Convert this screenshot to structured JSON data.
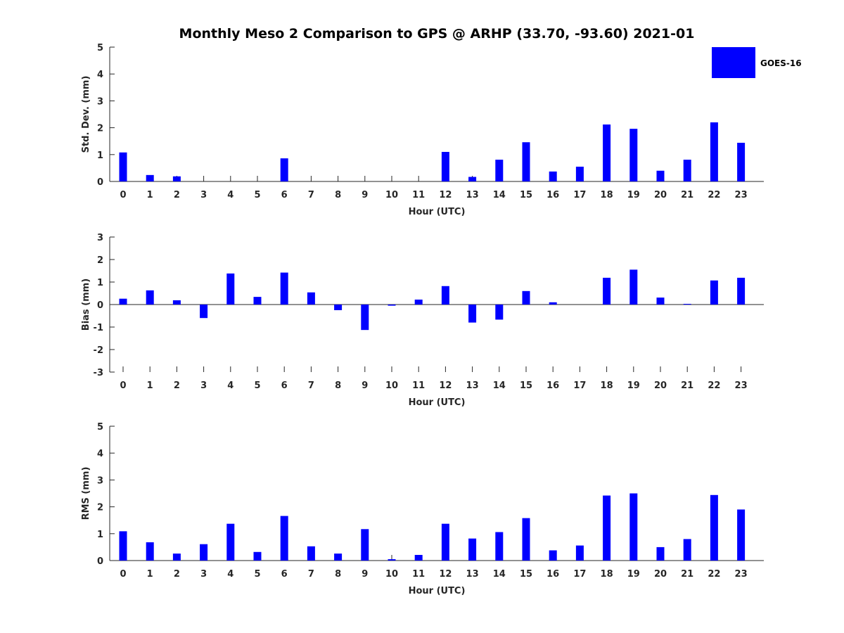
{
  "title": "Monthly Meso 2 Comparison to GPS @ ARHP (33.70, -93.60) 2021-01",
  "legend": {
    "label": "GOES-16",
    "color": "#0000ff",
    "placement": "top-right"
  },
  "chart_data": [
    {
      "type": "bar",
      "xlabel": "Hour (UTC)",
      "ylabel": "Std. Dev. (mm)",
      "ylim": [
        0,
        5
      ],
      "yticks": [
        "0",
        "1",
        "2",
        "3",
        "4",
        "5"
      ],
      "categories": [
        "0",
        "1",
        "2",
        "3",
        "4",
        "5",
        "6",
        "7",
        "8",
        "9",
        "10",
        "11",
        "12",
        "13",
        "14",
        "15",
        "16",
        "17",
        "18",
        "19",
        "20",
        "21",
        "22",
        "23"
      ],
      "series": [
        {
          "name": "GOES-16",
          "values": [
            1.08,
            0.24,
            0.19,
            0,
            0,
            0,
            0.86,
            0,
            0,
            0,
            0,
            0,
            1.1,
            0.17,
            0.81,
            1.46,
            0.37,
            0.55,
            2.12,
            1.96,
            0.4,
            0.81,
            2.2,
            1.44
          ]
        }
      ]
    },
    {
      "type": "bar",
      "xlabel": "Hour (UTC)",
      "ylabel": "Bias (mm)",
      "ylim": [
        -3,
        3
      ],
      "yticks": [
        "-3",
        "-2",
        "-1",
        "0",
        "1",
        "2",
        "3"
      ],
      "categories": [
        "0",
        "1",
        "2",
        "3",
        "4",
        "5",
        "6",
        "7",
        "8",
        "9",
        "10",
        "11",
        "12",
        "13",
        "14",
        "15",
        "16",
        "17",
        "18",
        "19",
        "20",
        "21",
        "22",
        "23"
      ],
      "series": [
        {
          "name": "GOES-16",
          "values": [
            0.26,
            0.63,
            0.19,
            -0.6,
            1.38,
            0.34,
            1.42,
            0.54,
            -0.25,
            -1.13,
            -0.05,
            0.22,
            0.82,
            -0.8,
            -0.67,
            0.6,
            0.1,
            0,
            1.19,
            1.55,
            0.31,
            0.03,
            1.07,
            1.19
          ]
        }
      ]
    },
    {
      "type": "bar",
      "xlabel": "Hour (UTC)",
      "ylabel": "RMS (mm)",
      "ylim": [
        0,
        5
      ],
      "yticks": [
        "0",
        "1",
        "2",
        "3",
        "4",
        "5"
      ],
      "categories": [
        "0",
        "1",
        "2",
        "3",
        "4",
        "5",
        "6",
        "7",
        "8",
        "9",
        "10",
        "11",
        "12",
        "13",
        "14",
        "15",
        "16",
        "17",
        "18",
        "19",
        "20",
        "21",
        "22",
        "23"
      ],
      "series": [
        {
          "name": "GOES-16",
          "values": [
            1.09,
            0.68,
            0.26,
            0.61,
            1.37,
            0.32,
            1.66,
            0.53,
            0.26,
            1.17,
            0.05,
            0.21,
            1.37,
            0.82,
            1.06,
            1.58,
            0.38,
            0.56,
            2.42,
            2.5,
            0.5,
            0.8,
            2.44,
            1.9
          ]
        }
      ]
    }
  ]
}
